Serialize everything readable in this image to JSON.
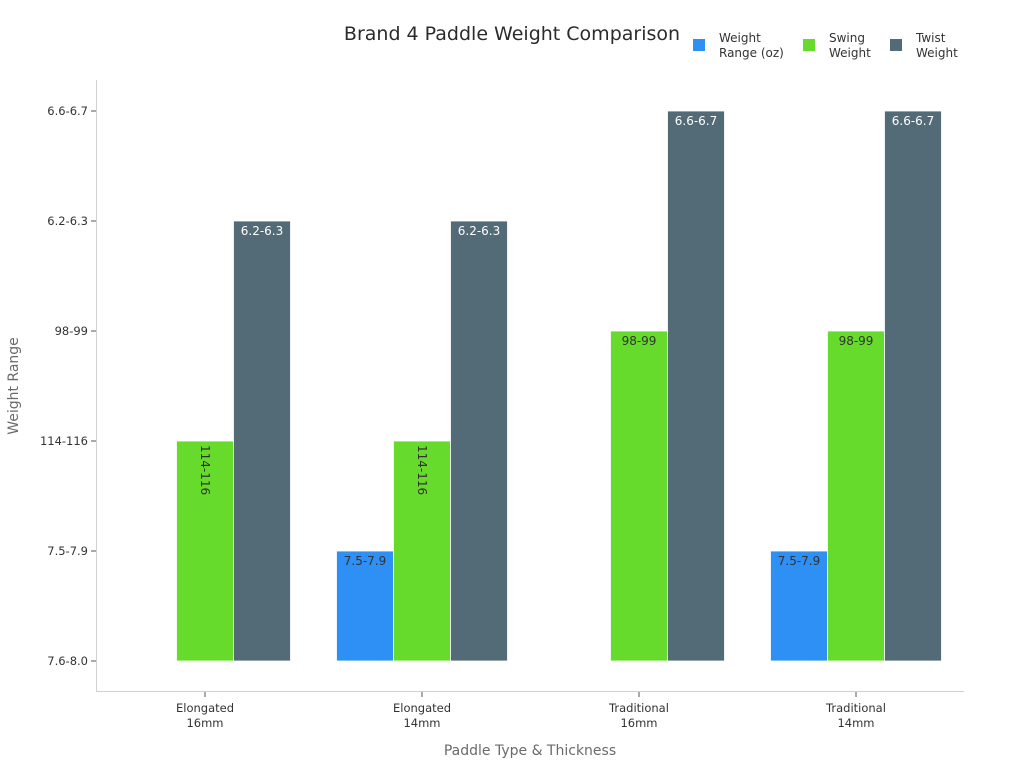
{
  "chart_data": {
    "type": "bar",
    "title": "Brand 4 Paddle Weight Comparison",
    "xlabel": "Paddle Type & Thickness",
    "ylabel": "Weight Range",
    "categories": [
      [
        "Elongated",
        "16mm"
      ],
      [
        "Elongated",
        "14mm"
      ],
      [
        "Traditional",
        "16mm"
      ],
      [
        "Traditional",
        "14mm"
      ]
    ],
    "y_categories": [
      "7.6-8.0",
      "7.5-7.9",
      "114-116",
      "98-99",
      "6.2-6.3",
      "6.6-6.7"
    ],
    "series": [
      {
        "name": [
          "Weight",
          "Range (oz)"
        ],
        "color": "#2e8ff5",
        "label_color": "#333333",
        "values": [
          null,
          "7.5-7.9",
          null,
          "7.5-7.9"
        ]
      },
      {
        "name": [
          "Swing",
          "Weight"
        ],
        "color": "#66db2b",
        "label_color": "#333333",
        "values": [
          "114-116",
          "114-116",
          "98-99",
          "98-99"
        ]
      },
      {
        "name": [
          "Twist",
          "Weight"
        ],
        "color": "#536b76",
        "label_color": "#ffffff",
        "values": [
          "6.2-6.3",
          "6.2-6.3",
          "6.6-6.7",
          "6.6-6.7"
        ]
      }
    ],
    "grid": false,
    "legend_position": "top-right"
  }
}
